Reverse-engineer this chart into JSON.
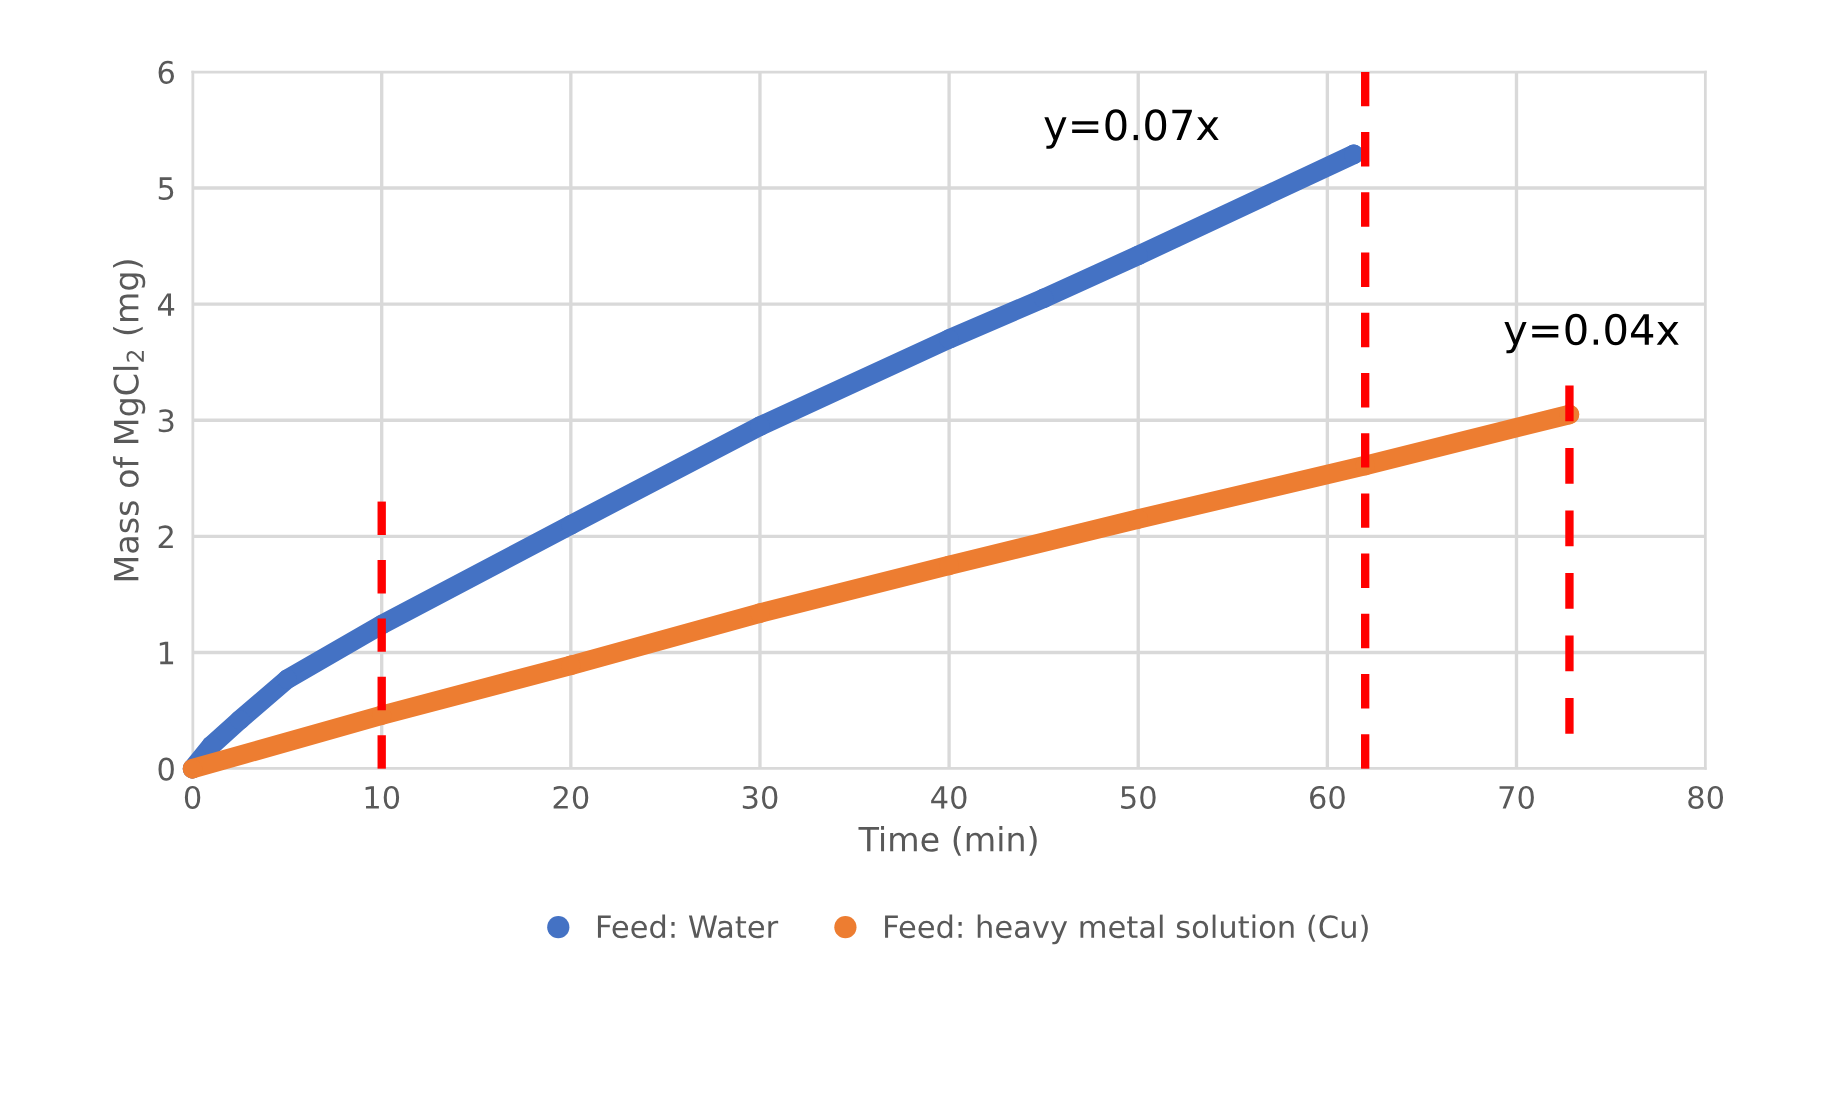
{
  "chart_data": {
    "type": "line",
    "xlabel": "Time (min)",
    "ylabel": "Mass of MgCl$_{2}$ (mg)",
    "xlim": [
      0,
      80
    ],
    "xticks": [
      0,
      10,
      20,
      30,
      40,
      50,
      60,
      70,
      80
    ],
    "ylim": [
      0,
      6
    ],
    "yticks": [
      0,
      1,
      2,
      3,
      4,
      5,
      6
    ],
    "grid": true,
    "legend": "bottom",
    "marker": "circle",
    "series": [
      {
        "name": "Feed: Water",
        "color": "#4472c4",
        "x": [
          0,
          1,
          2.5,
          5,
          10,
          20,
          30,
          40,
          45,
          50,
          61.4
        ],
        "values": [
          0,
          0.2,
          0.42,
          0.77,
          1.24,
          2.1,
          2.95,
          3.7,
          4.05,
          4.42,
          5.29
        ]
      },
      {
        "name": "Feed: heavy metal solution (Cu)",
        "color": "#ed7d31",
        "x": [
          0,
          10,
          20,
          30,
          40,
          50,
          62,
          72.8
        ],
        "values": [
          0,
          0.46,
          0.89,
          1.34,
          1.75,
          2.15,
          2.61,
          3.05
        ]
      },
      {
        "color": "#ff0000",
        "marker": "none",
        "line_style": "dashed",
        "x": [
          10,
          10
        ],
        "values": [
          0,
          2.3
        ]
      },
      {
        "color": "#ff0000",
        "marker": "none",
        "line_style": "dashed",
        "x": [
          62,
          62
        ],
        "values": [
          0,
          6
        ]
      },
      {
        "color": "#ff0000",
        "marker": "none",
        "line_style": "dashed",
        "x": [
          72.8,
          72.8
        ],
        "values": [
          0.3,
          3.3
        ]
      }
    ],
    "annotations": [
      "y=0.07x",
      "y=0.04x"
    ]
  }
}
